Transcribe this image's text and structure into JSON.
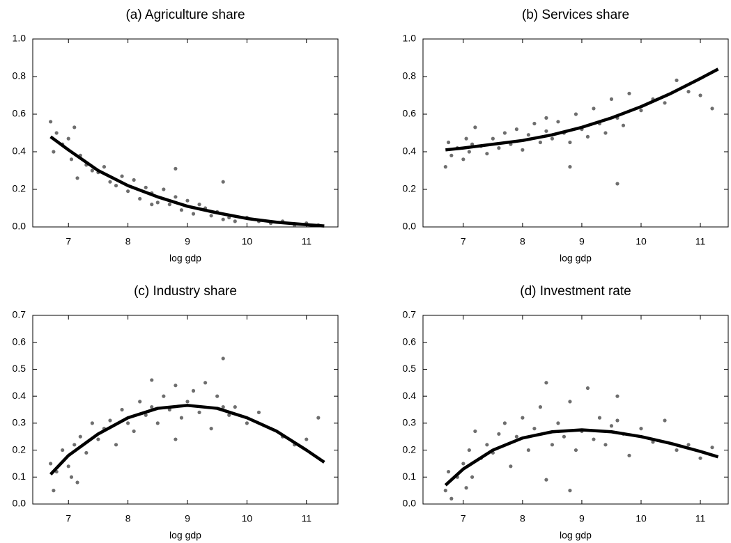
{
  "chart_data": [
    {
      "type": "scatter",
      "title": "(a) Agriculture share",
      "x_label": "log gdp",
      "xlim": [
        6.4,
        11.53
      ],
      "xticks": [
        7,
        8,
        9,
        10,
        11
      ],
      "ylim": [
        0,
        1
      ],
      "yticks": [
        {
          "value": 0,
          "label": "0.0"
        },
        0.2,
        0.4,
        0.6,
        0.8,
        {
          "value": 1,
          "label": "1.0"
        }
      ],
      "series": [
        {
          "color": "#6e6e6e",
          "x": [
            6.7,
            6.75,
            6.8,
            6.9,
            7.0,
            7.05,
            7.1,
            7.2,
            7.3,
            7.4,
            7.5,
            7.6,
            7.7,
            7.8,
            7.9,
            8.0,
            8.1,
            8.2,
            8.3,
            8.4,
            8.5,
            8.6,
            8.7,
            8.8,
            8.9,
            9.0,
            9.1,
            9.2,
            9.3,
            9.4,
            9.5,
            9.6,
            9.7,
            9.8,
            10.0,
            10.2,
            10.4,
            10.6,
            10.8,
            11.0,
            11.2,
            8.8,
            9.6,
            7.15,
            8.4
          ],
          "values": [
            0.56,
            0.4,
            0.5,
            0.44,
            0.47,
            0.36,
            0.53,
            0.38,
            0.33,
            0.3,
            0.29,
            0.32,
            0.24,
            0.22,
            0.27,
            0.19,
            0.25,
            0.15,
            0.21,
            0.18,
            0.13,
            0.2,
            0.12,
            0.16,
            0.09,
            0.14,
            0.07,
            0.12,
            0.1,
            0.06,
            0.08,
            0.04,
            0.05,
            0.03,
            0.05,
            0.03,
            0.02,
            0.03,
            0.01,
            0.02,
            0.01,
            0.31,
            0.24,
            0.26,
            0.12
          ]
        },
        {
          "type": "line",
          "color": "#000000",
          "x": [
            6.7,
            7,
            7.5,
            8,
            8.5,
            9,
            9.5,
            10,
            10.5,
            11,
            11.3
          ],
          "values": [
            0.48,
            0.41,
            0.3,
            0.22,
            0.16,
            0.11,
            0.075,
            0.045,
            0.025,
            0.012,
            0.005
          ]
        }
      ]
    },
    {
      "type": "scatter",
      "title": "(b) Services share",
      "x_label": "log gdp",
      "xlim": [
        6.32,
        11.47
      ],
      "xticks": [
        7,
        8,
        9,
        10,
        11
      ],
      "ylim": [
        0,
        1
      ],
      "yticks": [
        {
          "value": 0,
          "label": "0.0"
        },
        0.2,
        0.4,
        0.6,
        0.8,
        {
          "value": 1,
          "label": "1.0"
        }
      ],
      "series": [
        {
          "color": "#6e6e6e",
          "x": [
            6.7,
            6.75,
            6.8,
            6.9,
            7.0,
            7.05,
            7.1,
            7.2,
            7.3,
            7.4,
            7.5,
            7.6,
            7.7,
            7.8,
            7.9,
            8.0,
            8.1,
            8.2,
            8.3,
            8.4,
            8.5,
            8.6,
            8.7,
            8.8,
            8.9,
            9.0,
            9.1,
            9.2,
            9.3,
            9.4,
            9.5,
            9.6,
            9.7,
            9.8,
            10.0,
            10.2,
            10.4,
            10.6,
            10.8,
            11.0,
            11.2,
            8.8,
            9.6,
            7.15,
            8.4
          ],
          "values": [
            0.32,
            0.45,
            0.38,
            0.42,
            0.36,
            0.47,
            0.4,
            0.53,
            0.43,
            0.39,
            0.47,
            0.42,
            0.5,
            0.44,
            0.52,
            0.41,
            0.49,
            0.55,
            0.45,
            0.51,
            0.47,
            0.56,
            0.5,
            0.45,
            0.6,
            0.52,
            0.48,
            0.63,
            0.55,
            0.5,
            0.68,
            0.58,
            0.54,
            0.71,
            0.62,
            0.68,
            0.66,
            0.78,
            0.72,
            0.7,
            0.63,
            0.32,
            0.23,
            0.44,
            0.58
          ]
        },
        {
          "type": "line",
          "color": "#000000",
          "x": [
            6.7,
            7,
            7.5,
            8,
            8.5,
            9,
            9.5,
            10,
            10.5,
            11,
            11.3
          ],
          "values": [
            0.41,
            0.42,
            0.44,
            0.46,
            0.49,
            0.53,
            0.58,
            0.64,
            0.71,
            0.79,
            0.84
          ]
        }
      ]
    },
    {
      "type": "scatter",
      "title": "(c) Industry share",
      "x_label": "log gdp",
      "xlim": [
        6.4,
        11.53
      ],
      "xticks": [
        7,
        8,
        9,
        10,
        11
      ],
      "ylim": [
        0,
        0.7
      ],
      "yticks": [
        {
          "value": 0,
          "label": "0.0"
        },
        0.1,
        0.2,
        0.3,
        0.4,
        0.5,
        0.6,
        0.7
      ],
      "series": [
        {
          "color": "#6e6e6e",
          "x": [
            6.7,
            6.75,
            6.8,
            6.9,
            7.0,
            7.05,
            7.1,
            7.2,
            7.3,
            7.4,
            7.5,
            7.6,
            7.7,
            7.8,
            7.9,
            8.0,
            8.1,
            8.2,
            8.3,
            8.4,
            8.5,
            8.6,
            8.7,
            8.8,
            8.9,
            9.0,
            9.1,
            9.2,
            9.3,
            9.4,
            9.5,
            9.6,
            9.7,
            9.8,
            10.0,
            10.2,
            10.4,
            10.6,
            10.8,
            11.0,
            11.2,
            8.8,
            9.6,
            7.15,
            8.4
          ],
          "values": [
            0.15,
            0.05,
            0.12,
            0.2,
            0.14,
            0.1,
            0.22,
            0.25,
            0.19,
            0.3,
            0.24,
            0.28,
            0.31,
            0.22,
            0.35,
            0.3,
            0.27,
            0.38,
            0.33,
            0.46,
            0.3,
            0.4,
            0.35,
            0.44,
            0.32,
            0.38,
            0.42,
            0.34,
            0.45,
            0.28,
            0.4,
            0.54,
            0.33,
            0.36,
            0.3,
            0.34,
            0.28,
            0.25,
            0.22,
            0.24,
            0.32,
            0.24,
            0.36,
            0.08,
            0.36
          ]
        },
        {
          "type": "line",
          "color": "#000000",
          "x": [
            6.7,
            7,
            7.5,
            8,
            8.5,
            9,
            9.5,
            10,
            10.5,
            11,
            11.3
          ],
          "values": [
            0.11,
            0.18,
            0.26,
            0.32,
            0.355,
            0.366,
            0.355,
            0.32,
            0.27,
            0.2,
            0.155
          ]
        }
      ]
    },
    {
      "type": "scatter",
      "title": "(d) Investment rate",
      "x_label": "log gdp",
      "xlim": [
        6.32,
        11.47
      ],
      "xticks": [
        7,
        8,
        9,
        10,
        11
      ],
      "ylim": [
        0,
        0.7
      ],
      "yticks": [
        {
          "value": 0,
          "label": "0.0"
        },
        0.1,
        0.2,
        0.3,
        0.4,
        0.5,
        0.6,
        0.7
      ],
      "series": [
        {
          "color": "#6e6e6e",
          "x": [
            6.7,
            6.75,
            6.8,
            6.9,
            7.0,
            7.05,
            7.1,
            7.2,
            7.3,
            7.4,
            7.5,
            7.6,
            7.7,
            7.8,
            7.9,
            8.0,
            8.1,
            8.2,
            8.3,
            8.4,
            8.5,
            8.6,
            8.7,
            8.8,
            8.9,
            9.0,
            9.1,
            9.2,
            9.3,
            9.4,
            9.5,
            9.6,
            9.7,
            9.8,
            10.0,
            10.2,
            10.4,
            10.6,
            10.8,
            11.0,
            11.2,
            8.8,
            9.6,
            7.15,
            8.4
          ],
          "values": [
            0.05,
            0.12,
            0.02,
            0.1,
            0.15,
            0.06,
            0.2,
            0.27,
            0.17,
            0.22,
            0.19,
            0.26,
            0.3,
            0.14,
            0.25,
            0.32,
            0.2,
            0.28,
            0.36,
            0.45,
            0.22,
            0.3,
            0.25,
            0.38,
            0.2,
            0.27,
            0.43,
            0.24,
            0.32,
            0.22,
            0.29,
            0.4,
            0.26,
            0.18,
            0.28,
            0.23,
            0.31,
            0.2,
            0.22,
            0.17,
            0.21,
            0.05,
            0.31,
            0.1,
            0.09
          ]
        },
        {
          "type": "line",
          "color": "#000000",
          "x": [
            6.7,
            7,
            7.5,
            8,
            8.5,
            9,
            9.5,
            10,
            10.5,
            11,
            11.3
          ],
          "values": [
            0.07,
            0.13,
            0.2,
            0.245,
            0.268,
            0.275,
            0.268,
            0.25,
            0.225,
            0.195,
            0.175
          ]
        }
      ]
    }
  ]
}
